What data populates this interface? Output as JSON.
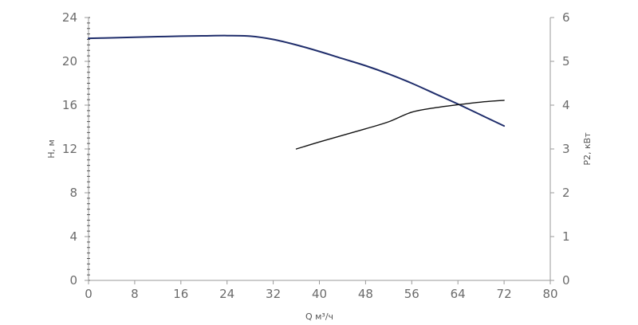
{
  "chart_data": {
    "type": "line",
    "xlabel": "Q м³/ч",
    "ylabel": "H, м",
    "y2label": "P2, кВт",
    "xlim": [
      0,
      80
    ],
    "ylim": [
      0,
      24
    ],
    "y2lim": [
      0,
      6
    ],
    "x_ticks": [
      0,
      8,
      16,
      24,
      32,
      40,
      48,
      56,
      64,
      72,
      80
    ],
    "y_ticks": [
      0,
      4,
      8,
      12,
      16,
      20,
      24
    ],
    "y2_ticks": [
      0,
      1,
      2,
      3,
      4,
      5,
      6
    ],
    "grid": false,
    "colors": {
      "head": "#1f2d6b",
      "power": "#111111",
      "axis": "#9a9a9a",
      "text": "#6b6b6b"
    },
    "series": [
      {
        "axis": "left",
        "x": [
          0,
          4,
          8,
          12,
          16,
          20,
          24,
          28,
          32,
          36,
          40,
          44,
          48,
          52,
          56,
          60,
          64,
          68,
          72
        ],
        "y": [
          22.1,
          22.15,
          22.2,
          22.25,
          22.3,
          22.33,
          22.35,
          22.3,
          22.0,
          21.5,
          20.9,
          20.25,
          19.6,
          18.85,
          18.0,
          17.05,
          16.1,
          15.1,
          14.1
        ]
      },
      {
        "axis": "right",
        "x": [
          36,
          40,
          44,
          48,
          52,
          56,
          60,
          64,
          68,
          72
        ],
        "y": [
          3.0,
          3.16,
          3.31,
          3.46,
          3.62,
          3.84,
          3.94,
          4.01,
          4.07,
          4.11
        ]
      }
    ]
  }
}
